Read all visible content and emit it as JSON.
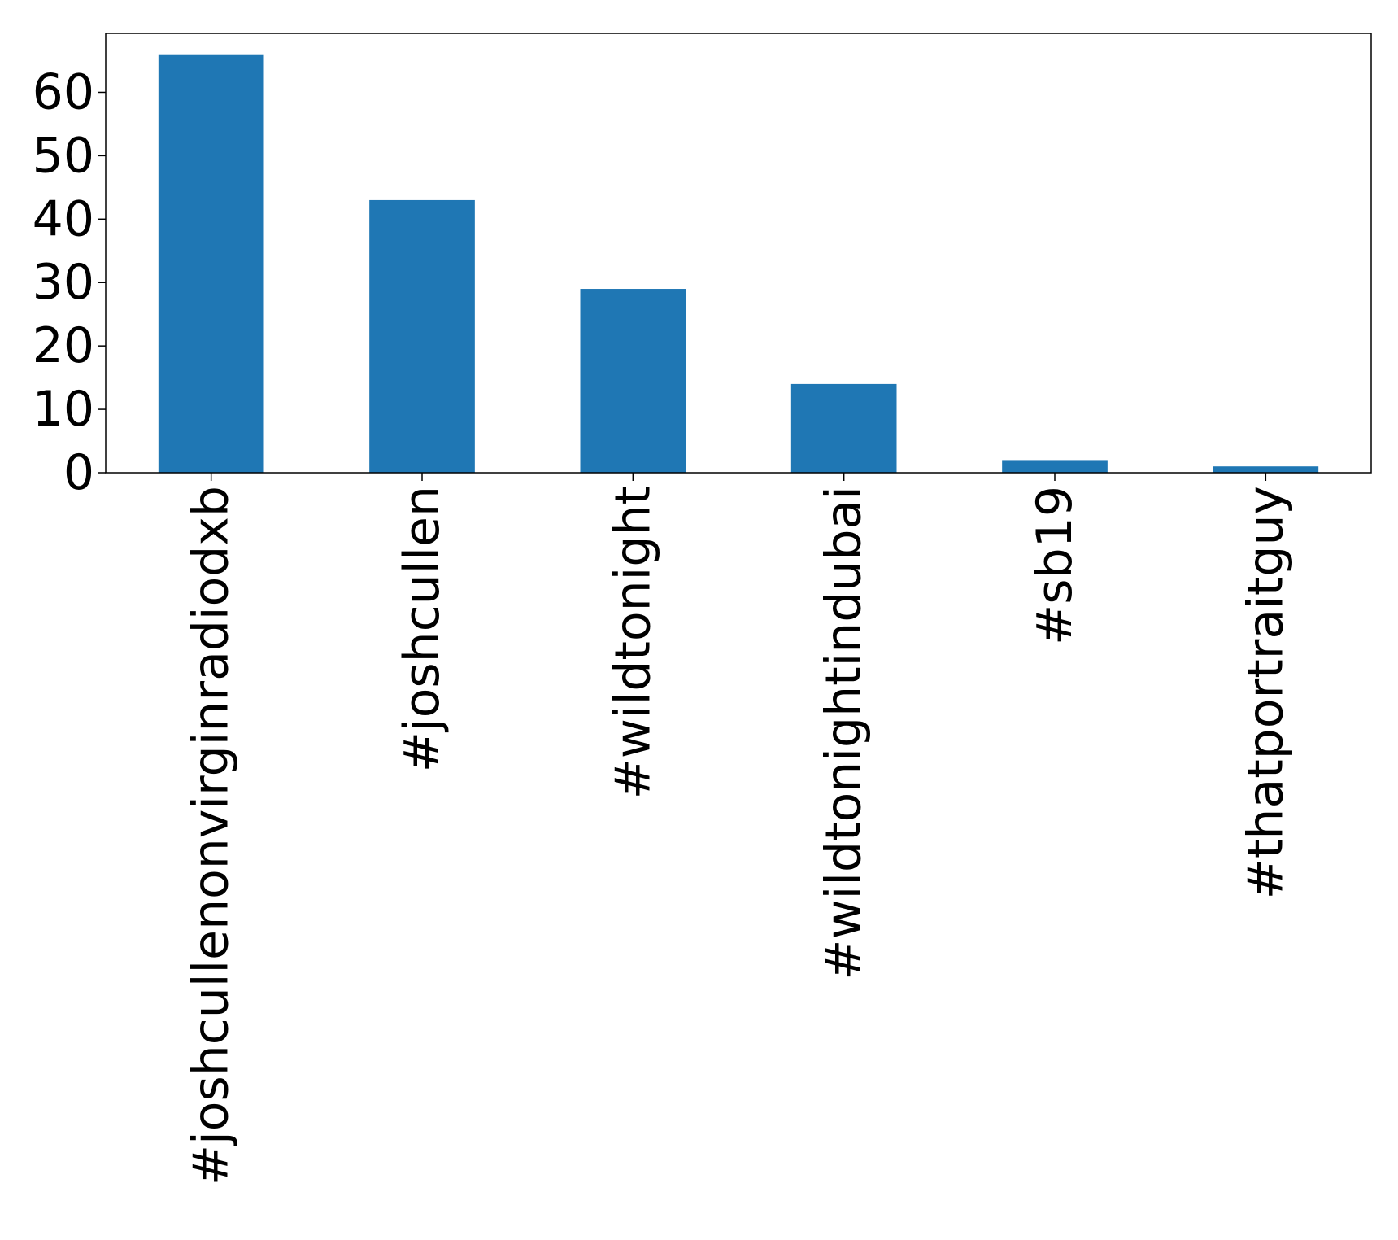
{
  "chart_data": {
    "type": "bar",
    "title": "",
    "xlabel": "",
    "ylabel": "",
    "categories": [
      "#joshcullenonvirginradiodxb",
      "#joshcullen",
      "#wildtonight",
      "#wildtonightindubai",
      "#sb19",
      "#thatportraitguy"
    ],
    "values": [
      66,
      43,
      29,
      14,
      2,
      1
    ],
    "ylim": [
      0,
      69.3
    ],
    "yticks": [
      "0",
      "10",
      "20",
      "30",
      "40",
      "50",
      "60"
    ],
    "grid": false,
    "legend": "none",
    "bar_color": "#1f77b4"
  }
}
